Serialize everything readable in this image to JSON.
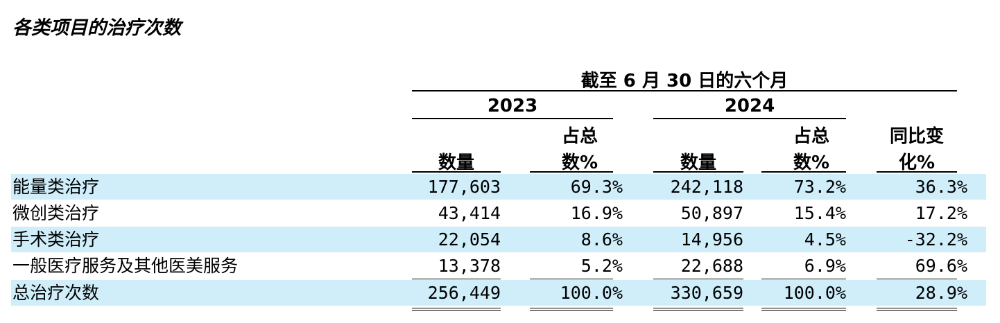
{
  "title": "各类项目的治疗次数",
  "period_header": "截至 6 月 30 日的六个月",
  "years": [
    "2023",
    "2024"
  ],
  "col_count": "数量",
  "col_share": [
    "占总",
    "数%"
  ],
  "col_change": [
    "同比变",
    "化%"
  ],
  "rows": [
    {
      "label": "能量类治疗",
      "c2023": "177,603",
      "s2023": "69.3%",
      "c2024": "242,118",
      "s2024": "73.2%",
      "change": "36.3%"
    },
    {
      "label": "微创类治疗",
      "c2023": "43,414",
      "s2023": "16.9%",
      "c2024": "50,897",
      "s2024": "15.4%",
      "change": "17.2%"
    },
    {
      "label": "手术类治疗",
      "c2023": "22,054",
      "s2023": "8.6%",
      "c2024": "14,956",
      "s2024": "4.5%",
      "change": "-32.2%"
    },
    {
      "label": "一般医疗服务及其他医美服务",
      "c2023": "13,378",
      "s2023": "5.2%",
      "c2024": "22,688",
      "s2024": "6.9%",
      "change": "69.6%"
    },
    {
      "label": "总治疗次数",
      "c2023": "256,449",
      "s2023": "100.0%",
      "c2024": "330,659",
      "s2024": "100.0%",
      "change": "28.9%"
    }
  ],
  "colors": {
    "row_shade": "#cfeefa",
    "rule": "#000000"
  }
}
